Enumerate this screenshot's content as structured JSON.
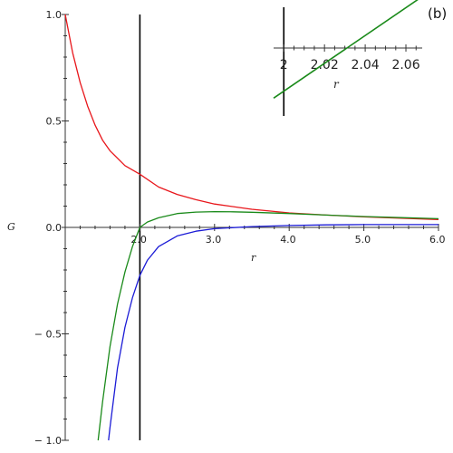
{
  "panel_label": "(b)",
  "colors": {
    "red": "#e8161b",
    "green": "#1a8a1a",
    "blue": "#1b1bd6",
    "axis": "#333333"
  },
  "chart_data": [
    {
      "type": "line",
      "title": "",
      "xlabel": "r",
      "ylabel": "G",
      "xlim": [
        1.0,
        6.0
      ],
      "ylim": [
        -1.0,
        1.0
      ],
      "x_ticks": [
        {
          "value": 2.0,
          "label": "2.0"
        },
        {
          "value": 3.0,
          "label": "3.0"
        },
        {
          "value": 4.0,
          "label": "4.0"
        },
        {
          "value": 5.0,
          "label": "5.0"
        },
        {
          "value": 6.0,
          "label": "6.0"
        }
      ],
      "y_ticks": [
        {
          "value": 1.0,
          "label": "1.0"
        },
        {
          "value": 0.5,
          "label": "0.5"
        },
        {
          "value": 0.0,
          "label": "0.0"
        },
        {
          "value": -0.5,
          "label": "− 0.5"
        },
        {
          "value": -1.0,
          "label": "− 1.0"
        }
      ],
      "vertical_line_x": 2.0,
      "series": [
        {
          "color": "#e8161b",
          "x": [
            1.0,
            1.1,
            1.2,
            1.3,
            1.4,
            1.5,
            1.6,
            1.8,
            2.0,
            2.25,
            2.5,
            2.75,
            3.0,
            3.5,
            4.0,
            4.5,
            5.0,
            5.5,
            6.0
          ],
          "y": [
            1.0,
            0.82,
            0.68,
            0.57,
            0.48,
            0.41,
            0.36,
            0.29,
            0.25,
            0.19,
            0.155,
            0.13,
            0.11,
            0.085,
            0.068,
            0.058,
            0.05,
            0.043,
            0.037
          ]
        },
        {
          "color": "#1a8a1a",
          "x": [
            1.44,
            1.5,
            1.6,
            1.7,
            1.8,
            1.9,
            2.0,
            2.1,
            2.25,
            2.5,
            2.75,
            3.0,
            3.25,
            3.5,
            4.0,
            4.5,
            5.0,
            5.5,
            6.0
          ],
          "y": [
            -1.0,
            -0.82,
            -0.56,
            -0.36,
            -0.21,
            -0.09,
            0.0,
            0.025,
            0.045,
            0.065,
            0.072,
            0.074,
            0.073,
            0.071,
            0.065,
            0.058,
            0.051,
            0.046,
            0.041
          ]
        },
        {
          "color": "#1b1bd6",
          "x": [
            1.58,
            1.6,
            1.7,
            1.8,
            1.9,
            2.0,
            2.1,
            2.25,
            2.5,
            2.75,
            3.0,
            3.5,
            4.0,
            4.5,
            5.0,
            5.5,
            6.0
          ],
          "y": [
            -1.0,
            -0.94,
            -0.66,
            -0.47,
            -0.33,
            -0.225,
            -0.155,
            -0.09,
            -0.04,
            -0.018,
            -0.006,
            0.004,
            0.009,
            0.012,
            0.013,
            0.013,
            0.013
          ]
        }
      ]
    },
    {
      "type": "line",
      "title": "",
      "xlabel": "r",
      "ylabel": "",
      "xlim": [
        1.995,
        2.068
      ],
      "x_ticks": [
        {
          "value": 2.0,
          "label": "2"
        },
        {
          "value": 2.02,
          "label": "2.02"
        },
        {
          "value": 2.04,
          "label": "2.04"
        },
        {
          "value": 2.06,
          "label": "2.06"
        }
      ],
      "vertical_line_x": 2.0,
      "series": [
        {
          "color": "#1a8a1a",
          "x": [
            1.995,
            2.067
          ],
          "y": [
            -0.0155,
            0.0155
          ]
        }
      ]
    }
  ]
}
